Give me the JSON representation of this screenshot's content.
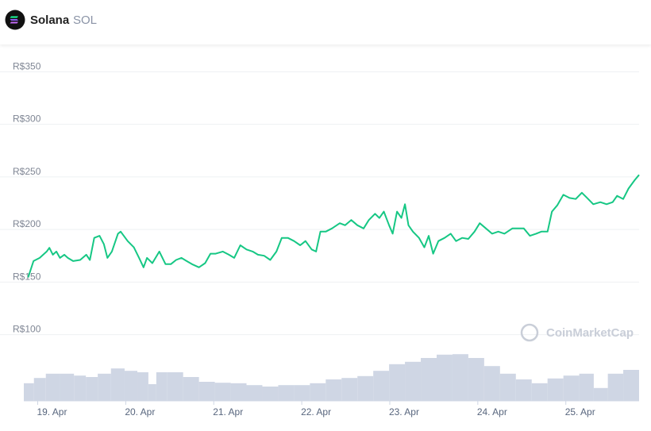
{
  "header": {
    "name": "Solana",
    "symbol": "SOL"
  },
  "chart_data": {
    "type": "line",
    "watermark": "CoinMarketCap",
    "xlim": [
      -0.32,
      6.67
    ],
    "xticks": [
      {
        "value": 0,
        "label": "19. Apr"
      },
      {
        "value": 1,
        "label": "20. Apr"
      },
      {
        "value": 2,
        "label": "21. Apr"
      },
      {
        "value": 3,
        "label": "22. Apr"
      },
      {
        "value": 4,
        "label": "23. Apr"
      },
      {
        "value": 5,
        "label": "24. Apr"
      },
      {
        "value": 6,
        "label": "25. Apr"
      }
    ],
    "ylim": [
      37,
      373
    ],
    "yticks": [
      {
        "value": 100,
        "label": "R$100"
      },
      {
        "value": 150,
        "label": "R$150"
      },
      {
        "value": 200,
        "label": "R$200"
      },
      {
        "value": 250,
        "label": "R$250"
      },
      {
        "value": 300,
        "label": "R$300"
      },
      {
        "value": 350,
        "label": "R$350"
      }
    ],
    "y2lim": [
      0,
      100
    ],
    "grid": true,
    "series": [
      {
        "type": "line",
        "color": "#16c784",
        "x": [
          -0.27,
          -0.21,
          -0.14,
          -0.06,
          -0.03,
          0.01,
          0.05,
          0.09,
          0.14,
          0.18,
          0.24,
          0.32,
          0.39,
          0.43,
          0.48,
          0.54,
          0.59,
          0.63,
          0.68,
          0.75,
          0.78,
          0.86,
          0.93,
          0.99,
          1.04,
          1.08,
          1.14,
          1.22,
          1.29,
          1.35,
          1.41,
          1.47,
          1.53,
          1.59,
          1.67,
          1.74,
          1.8,
          1.86,
          1.94,
          2.01,
          2.07,
          2.14,
          2.21,
          2.28,
          2.34,
          2.41,
          2.48,
          2.55,
          2.61,
          2.68,
          2.75,
          2.82,
          2.88,
          2.95,
          3.0,
          3.05,
          3.11,
          3.18,
          3.27,
          3.33,
          3.4,
          3.47,
          3.54,
          3.6,
          3.67,
          3.72,
          3.77,
          3.83,
          3.87,
          3.92,
          3.97,
          4.01,
          4.05,
          4.1,
          4.17,
          4.23,
          4.28,
          4.33,
          4.39,
          4.46,
          4.53,
          4.59,
          4.66,
          4.73,
          4.8,
          4.86,
          4.93,
          5.0,
          5.07,
          5.14,
          5.23,
          5.29,
          5.36,
          5.43,
          5.5,
          5.56,
          5.63,
          5.68,
          5.74,
          5.81,
          5.88,
          5.95,
          6.02,
          6.08,
          6.15,
          6.23,
          6.3,
          6.37,
          6.42,
          6.49,
          6.55,
          6.62,
          6.67
        ],
        "values": [
          154.5,
          170,
          173,
          179,
          182.6,
          176,
          179,
          173,
          176,
          173,
          170,
          171,
          176,
          171,
          192,
          194,
          186,
          173,
          179,
          196,
          198,
          189,
          183,
          173,
          164,
          173,
          168,
          179,
          167,
          167,
          171,
          173,
          170,
          167,
          164,
          168,
          177,
          177,
          179,
          176,
          173,
          185,
          181,
          179,
          176,
          175,
          171,
          179,
          192,
          192,
          189,
          185,
          189,
          181,
          179,
          198,
          198,
          201,
          206,
          204,
          209,
          204,
          201,
          209,
          215,
          211,
          217,
          204,
          196,
          217,
          211,
          224,
          204,
          198,
          192,
          183,
          194,
          177,
          189,
          192,
          196,
          189,
          192,
          191,
          198,
          206,
          201,
          196,
          198,
          196,
          201,
          201,
          201,
          194,
          196,
          198,
          198,
          217,
          223,
          233,
          230,
          229,
          235,
          230,
          224,
          226,
          224,
          226,
          232,
          229,
          239,
          247,
          252
        ]
      },
      {
        "type": "bar",
        "axis": "y2",
        "color": "#cfd6e4",
        "x": [
          -0.27,
          -0.14,
          0,
          0.18,
          0.32,
          0.45,
          0.59,
          0.75,
          0.9,
          1.04,
          1.15,
          1.22,
          1.4,
          1.58,
          1.76,
          1.94,
          2.12,
          2.3,
          2.48,
          2.66,
          2.84,
          3.02,
          3.2,
          3.38,
          3.56,
          3.74,
          3.92,
          4.1,
          4.28,
          4.46,
          4.64,
          4.82,
          5.0,
          5.18,
          5.36,
          5.54,
          5.72,
          5.9,
          6.08,
          6.23,
          6.4,
          6.58
        ],
        "values": [
          37,
          48,
          57,
          57,
          53,
          50,
          57,
          68,
          63,
          60,
          35,
          60,
          60,
          50,
          40,
          38,
          37,
          33,
          30,
          33,
          33,
          37,
          45,
          48,
          52,
          63,
          77,
          82,
          90,
          97,
          98,
          90,
          73,
          57,
          45,
          37,
          47,
          53,
          57,
          27,
          57,
          65
        ]
      }
    ]
  }
}
